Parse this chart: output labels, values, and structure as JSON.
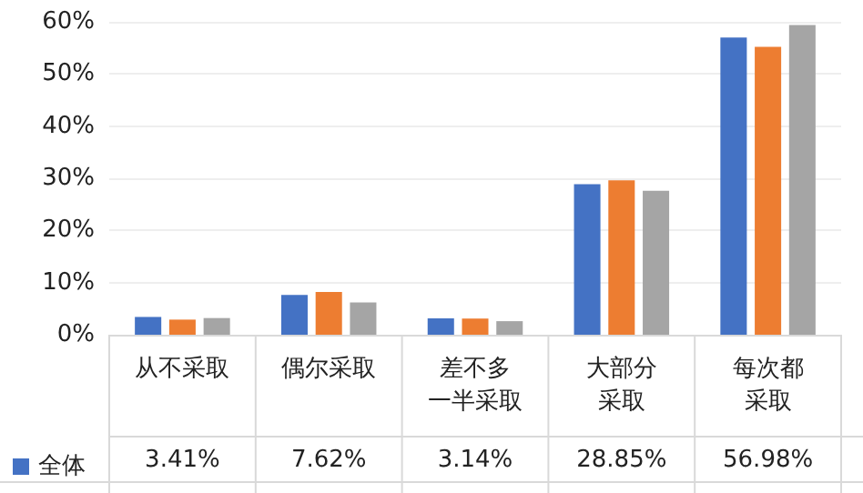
{
  "chart_data": {
    "type": "bar",
    "categories": [
      "从不采取",
      "偶尔采取",
      "差不多一半采取",
      "大部分采取",
      "每次都采取"
    ],
    "series": [
      {
        "name": "全体",
        "color": "#4472c4",
        "values": [
          3.41,
          7.62,
          3.14,
          28.85,
          56.98
        ],
        "value_labels": [
          "3.41%",
          "7.62%",
          "3.14%",
          "28.85%",
          "56.98%"
        ]
      },
      {
        "color": "#ed7d31",
        "values": [
          2.9,
          8.2,
          3.1,
          29.6,
          55.2
        ]
      },
      {
        "color": "#a5a5a5",
        "values": [
          3.2,
          6.2,
          2.6,
          27.6,
          59.4
        ]
      }
    ],
    "ylim": [
      0,
      60
    ],
    "yticks": [
      {
        "value": 0,
        "label": "0%"
      },
      {
        "value": 10,
        "label": "10%"
      },
      {
        "value": 20,
        "label": "20%"
      },
      {
        "value": 30,
        "label": "30%"
      },
      {
        "value": 40,
        "label": "40%"
      },
      {
        "value": 50,
        "label": "50%"
      },
      {
        "value": 60,
        "label": "60%"
      }
    ],
    "grid": "y",
    "legend": "bottom left"
  }
}
